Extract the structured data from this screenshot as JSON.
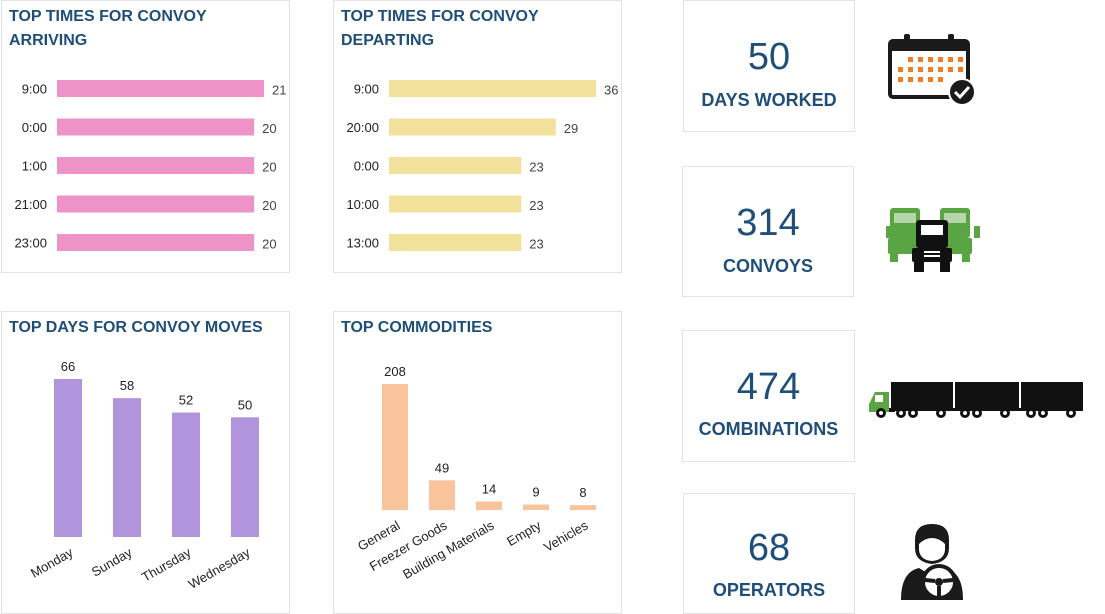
{
  "chart_data": [
    {
      "id": "arriving",
      "type": "bar",
      "orientation": "horizontal",
      "title": "TOP TIMES FOR CONVOY ARRIVING",
      "title_lines": [
        "TOP TIMES FOR CONVOY",
        "ARRIVING"
      ],
      "categories": [
        "9:00",
        "0:00",
        "1:00",
        "21:00",
        "23:00"
      ],
      "values": [
        21,
        20,
        20,
        20,
        20
      ],
      "xlim": [
        0,
        21
      ],
      "color": "#ee93c8"
    },
    {
      "id": "departing",
      "type": "bar",
      "orientation": "horizontal",
      "title": "TOP TIMES FOR CONVOY DEPARTING",
      "title_lines": [
        "TOP TIMES FOR CONVOY",
        "DEPARTING"
      ],
      "categories": [
        "9:00",
        "20:00",
        "0:00",
        "10:00",
        "13:00"
      ],
      "values": [
        36,
        29,
        23,
        23,
        23
      ],
      "xlim": [
        0,
        36
      ],
      "color": "#f1e19a"
    },
    {
      "id": "days",
      "type": "bar",
      "orientation": "vertical",
      "title": "TOP DAYS FOR CONVOY MOVES",
      "title_lines": [
        "TOP DAYS FOR CONVOY MOVES"
      ],
      "categories": [
        "Monday",
        "Sunday",
        "Thursday",
        "Wednesday"
      ],
      "values": [
        66,
        58,
        52,
        50
      ],
      "ylim": [
        0,
        66
      ],
      "color": "#b095dc"
    },
    {
      "id": "commodities",
      "type": "bar",
      "orientation": "vertical",
      "title": "TOP COMMODITIES",
      "title_lines": [
        "TOP COMMODITIES"
      ],
      "categories": [
        "General",
        "Freezer Goods",
        "Building Materials",
        "Empty",
        "Vehicles"
      ],
      "values": [
        208,
        49,
        14,
        9,
        8
      ],
      "ylim": [
        0,
        208
      ],
      "color": "#f9c49b"
    }
  ],
  "kpis": [
    {
      "value": "50",
      "label": "DAYS WORKED",
      "icon": "calendar-check-icon"
    },
    {
      "value": "314",
      "label": "CONVOYS",
      "icon": "trucks-icon"
    },
    {
      "value": "474",
      "label": "COMBINATIONS",
      "icon": "road-train-icon"
    },
    {
      "value": "68",
      "label": "OPERATORS",
      "icon": "driver-icon"
    }
  ],
  "colors": {
    "title": "#1f4e79",
    "label": "#222222",
    "value_label": "#444444",
    "truck_green": "#5aa543",
    "calendar_orange": "#f07d22"
  }
}
